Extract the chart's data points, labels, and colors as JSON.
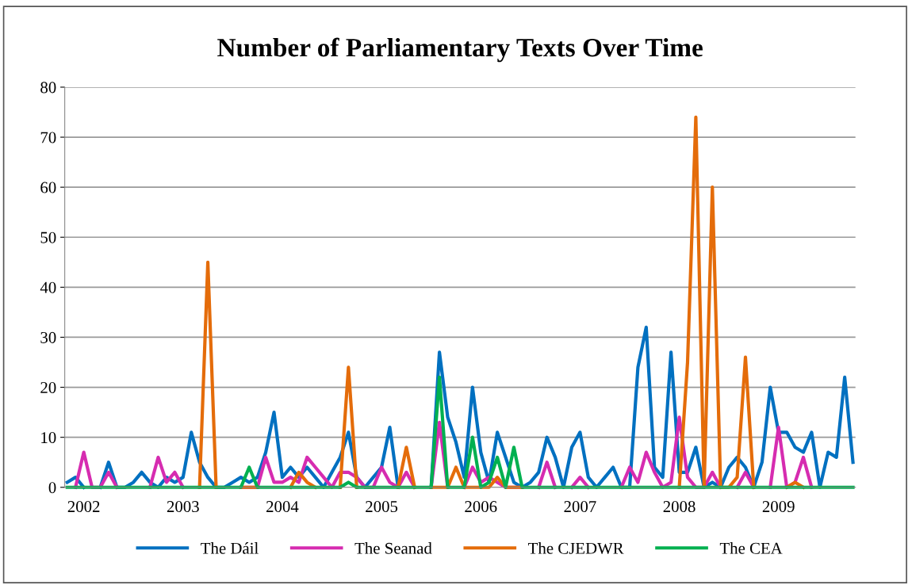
{
  "chart_data": {
    "type": "line",
    "title": "Number of Parliamentary Texts Over Time",
    "categories": [
      null,
      null,
      "2002",
      null,
      null,
      null,
      null,
      null,
      null,
      null,
      null,
      null,
      null,
      null,
      "2003",
      null,
      null,
      null,
      null,
      null,
      null,
      null,
      null,
      null,
      null,
      null,
      "2004",
      null,
      null,
      null,
      null,
      null,
      null,
      null,
      null,
      null,
      null,
      null,
      "2005",
      null,
      null,
      null,
      null,
      null,
      null,
      null,
      null,
      null,
      null,
      null,
      "2006",
      null,
      null,
      null,
      null,
      null,
      null,
      null,
      null,
      null,
      null,
      null,
      "2007",
      null,
      null,
      null,
      null,
      null,
      null,
      null,
      null,
      null,
      null,
      null,
      "2008",
      null,
      null,
      null,
      null,
      null,
      null,
      null,
      null,
      null,
      null,
      null,
      "2009",
      null,
      null,
      null,
      null,
      null,
      null,
      null,
      null,
      null
    ],
    "series": [
      {
        "name": "The Dáil",
        "color": "#0070c0",
        "values": [
          1,
          2,
          0,
          null,
          0,
          5,
          0,
          0,
          1,
          3,
          1,
          0,
          2,
          1,
          2,
          11,
          5,
          2,
          0,
          0,
          1,
          2,
          1,
          2,
          7,
          15,
          2,
          4,
          2,
          4,
          2,
          0,
          3,
          6,
          11,
          2,
          0,
          2,
          4,
          12,
          0,
          null,
          null,
          null,
          0,
          27,
          14,
          9,
          2,
          20,
          7,
          1,
          11,
          6,
          1,
          0,
          1,
          3,
          10,
          6,
          0,
          8,
          11,
          2,
          0,
          2,
          4,
          0,
          0,
          24,
          32,
          4,
          2,
          27,
          3,
          3,
          8,
          0,
          1,
          0,
          4,
          6,
          4,
          0,
          5,
          20,
          11,
          11,
          8,
          7,
          11,
          0,
          7,
          6,
          22,
          5
        ]
      },
      {
        "name": "The Seanad",
        "color": "#d62cb0",
        "values": [
          null,
          0,
          7,
          0,
          0,
          3,
          0,
          null,
          null,
          null,
          0,
          6,
          1,
          3,
          0,
          null,
          null,
          null,
          null,
          null,
          null,
          0,
          0,
          0,
          6,
          1,
          1,
          2,
          1,
          6,
          4,
          2,
          0,
          3,
          3,
          2,
          0,
          0,
          4,
          1,
          0,
          3,
          0,
          null,
          0,
          13,
          0,
          null,
          0,
          4,
          1,
          2,
          1,
          0,
          0,
          0,
          null,
          0,
          5,
          0,
          null,
          0,
          2,
          0,
          null,
          null,
          null,
          0,
          4,
          1,
          7,
          3,
          0,
          1,
          14,
          2,
          0,
          0,
          3,
          0,
          null,
          0,
          3,
          0,
          null,
          0,
          12,
          0,
          1,
          6,
          0,
          null,
          null,
          null,
          null,
          null
        ]
      },
      {
        "name": "The CJEDWR",
        "color": "#e46c0a",
        "values": [
          null,
          null,
          null,
          null,
          null,
          null,
          null,
          null,
          null,
          null,
          null,
          null,
          null,
          null,
          null,
          null,
          0,
          45,
          0,
          null,
          null,
          0,
          0,
          0,
          null,
          null,
          null,
          0,
          3,
          1,
          0,
          null,
          null,
          0,
          24,
          0,
          null,
          null,
          null,
          null,
          0,
          8,
          0,
          null,
          0,
          0,
          0,
          4,
          0,
          0,
          0,
          0,
          2,
          0,
          0,
          0,
          null,
          null,
          null,
          null,
          null,
          null,
          null,
          null,
          null,
          null,
          null,
          null,
          null,
          null,
          null,
          null,
          null,
          null,
          0,
          25,
          74,
          0,
          60,
          0,
          0,
          2,
          26,
          0,
          null,
          null,
          null,
          0,
          1,
          0,
          null,
          null,
          null,
          null,
          null,
          null
        ]
      },
      {
        "name": "The CEA",
        "color": "#00b050",
        "values": [
          0,
          0,
          0,
          0,
          0,
          0,
          0,
          0,
          0,
          0,
          0,
          0,
          0,
          0,
          0,
          0,
          0,
          0,
          0,
          0,
          0,
          0,
          4,
          0,
          0,
          0,
          0,
          0,
          0,
          0,
          0,
          0,
          0,
          0,
          1,
          0,
          0,
          0,
          0,
          0,
          0,
          0,
          0,
          0,
          0,
          22,
          0,
          0,
          0,
          10,
          0,
          1,
          6,
          0,
          8,
          0,
          0,
          0,
          0,
          0,
          0,
          0,
          0,
          0,
          0,
          0,
          0,
          0,
          0,
          0,
          0,
          0,
          0,
          0,
          0,
          0,
          0,
          0,
          0,
          0,
          0,
          0,
          0,
          0,
          0,
          0,
          0,
          0,
          0,
          0,
          0,
          0,
          0,
          0,
          0,
          0
        ]
      }
    ],
    "ylim": [
      0,
      80
    ],
    "yticks": [
      0,
      10,
      20,
      30,
      40,
      50,
      60,
      70,
      80
    ],
    "grid": "y",
    "legend": "bottom",
    "marker": "none",
    "line_style": "solid"
  }
}
